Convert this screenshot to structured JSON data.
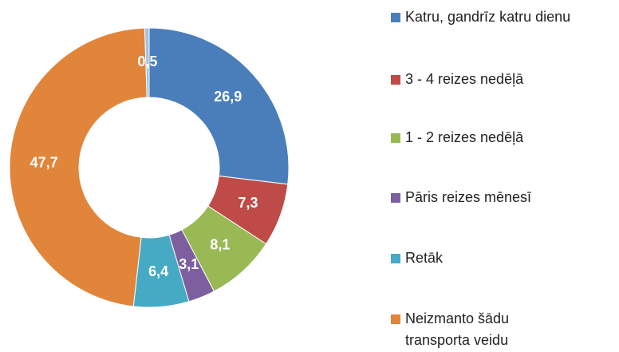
{
  "chart_data": {
    "type": "donut",
    "categories": [
      "Katru, gandrīz katru dienu",
      "3 - 4 reizes nedēļā",
      "1 - 2 reizes nedēļā",
      "Pāris reizes mēnesī",
      "Retāk",
      "Neizmanto šādu transporta veidu",
      null
    ],
    "values": [
      26.9,
      7.3,
      8.1,
      3.1,
      6.4,
      47.7,
      0.5
    ],
    "value_labels": [
      "26,9",
      "7,3",
      "8,1",
      "3,1",
      "6,4",
      "47,7",
      "0,5"
    ],
    "colors": [
      "#4a7ebb",
      "#be4b48",
      "#98b954",
      "#7d5fa0",
      "#46aac5",
      "#e0853a",
      "#9dc3e6"
    ],
    "legend": "right"
  }
}
